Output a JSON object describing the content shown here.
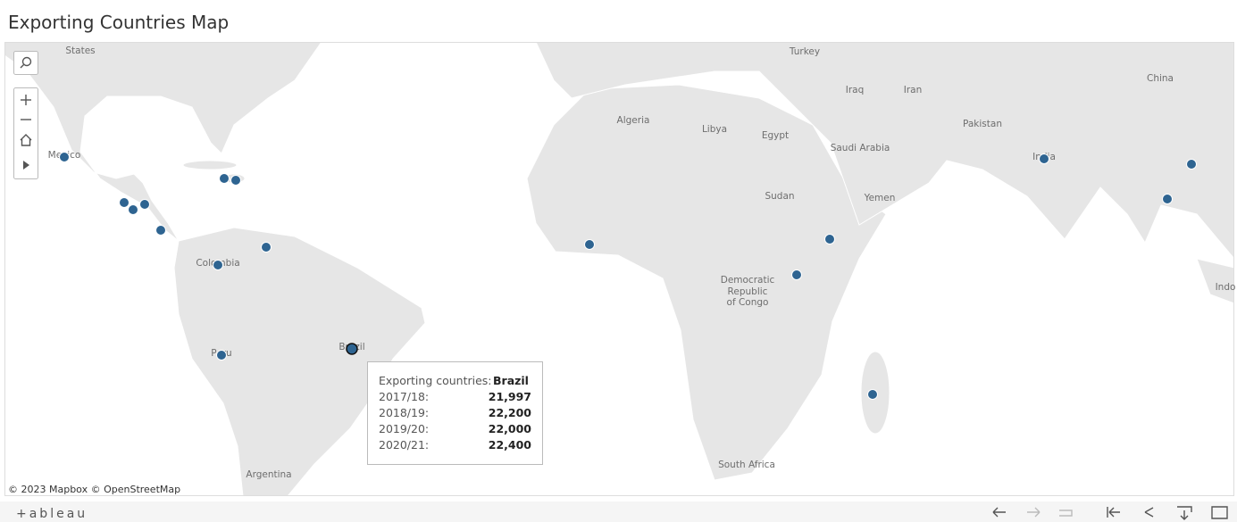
{
  "header": {
    "title": "Exporting Countries Map"
  },
  "map": {
    "labels": [
      "States",
      "Turkey",
      "Iraq",
      "Iran",
      "China",
      "Algeria",
      "Libya",
      "Egypt",
      "Saudi Arabia",
      "Pakistan",
      "India",
      "Sudan",
      "Yemen",
      "Mexico",
      "Colombia",
      "Peru",
      "Brazil",
      "Democratic",
      "Republic",
      "of Congo",
      "Argentina",
      "South Africa",
      "Indo"
    ],
    "attribution": "© 2023 Mapbox  © OpenStreetMap"
  },
  "tooltip": {
    "label": "Exporting countries:",
    "country": "Brazil",
    "rows": [
      [
        "2017/18:",
        "21,997"
      ],
      [
        "2018/19:",
        "22,200"
      ],
      [
        "2019/20:",
        "22,000"
      ],
      [
        "2020/21:",
        "22,400"
      ]
    ]
  },
  "footer": {
    "logo": "+ableau"
  }
}
